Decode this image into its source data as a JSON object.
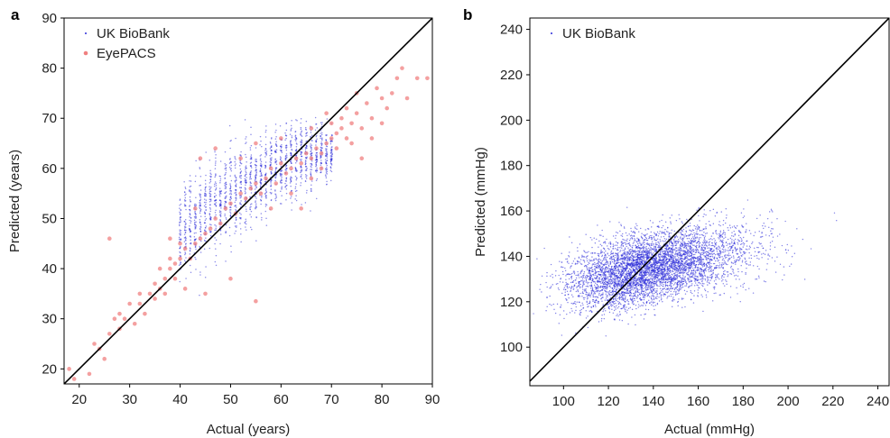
{
  "chart_data": [
    {
      "panel": "a",
      "type": "scatter",
      "xlabel": "Actual (years)",
      "ylabel": "Predicted (years)",
      "xlim": [
        17,
        90
      ],
      "ylim": [
        17,
        90
      ],
      "xticks": [
        20,
        30,
        40,
        50,
        60,
        70,
        80,
        90
      ],
      "yticks": [
        20,
        30,
        40,
        50,
        60,
        70,
        80,
        90
      ],
      "grid": false,
      "legend_position": "top-left",
      "identity_line": true,
      "series": [
        {
          "name": "UK BioBank",
          "color": "#2b2bd9",
          "clusters": [
            {
              "x": 40,
              "y_range": [
                38,
                57
              ]
            },
            {
              "x": 41,
              "y_range": [
                38,
                58
              ]
            },
            {
              "x": 42,
              "y_range": [
                39,
                59
              ]
            },
            {
              "x": 43,
              "y_range": [
                40,
                59
              ]
            },
            {
              "x": 44,
              "y_range": [
                40,
                60
              ]
            },
            {
              "x": 45,
              "y_range": [
                41,
                61
              ]
            },
            {
              "x": 46,
              "y_range": [
                42,
                62
              ]
            },
            {
              "x": 47,
              "y_range": [
                42,
                63
              ]
            },
            {
              "x": 48,
              "y_range": [
                43,
                63
              ]
            },
            {
              "x": 49,
              "y_range": [
                44,
                64
              ]
            },
            {
              "x": 50,
              "y_range": [
                45,
                65
              ]
            },
            {
              "x": 51,
              "y_range": [
                45,
                65
              ]
            },
            {
              "x": 52,
              "y_range": [
                46,
                66
              ]
            },
            {
              "x": 53,
              "y_range": [
                47,
                66
              ]
            },
            {
              "x": 54,
              "y_range": [
                47,
                67
              ]
            },
            {
              "x": 55,
              "y_range": [
                48,
                67
              ]
            },
            {
              "x": 56,
              "y_range": [
                49,
                68
              ]
            },
            {
              "x": 57,
              "y_range": [
                50,
                68
              ]
            },
            {
              "x": 58,
              "y_range": [
                50,
                68
              ]
            },
            {
              "x": 59,
              "y_range": [
                51,
                69
              ]
            },
            {
              "x": 60,
              "y_range": [
                52,
                69
              ]
            },
            {
              "x": 61,
              "y_range": [
                52,
                69
              ]
            },
            {
              "x": 62,
              "y_range": [
                53,
                70
              ]
            },
            {
              "x": 63,
              "y_range": [
                54,
                70
              ]
            },
            {
              "x": 64,
              "y_range": [
                54,
                70
              ]
            },
            {
              "x": 65,
              "y_range": [
                55,
                70
              ]
            },
            {
              "x": 66,
              "y_range": [
                55,
                70
              ]
            },
            {
              "x": 67,
              "y_range": [
                56,
                70
              ]
            },
            {
              "x": 68,
              "y_range": [
                56,
                70
              ]
            },
            {
              "x": 69,
              "y_range": [
                57,
                69
              ]
            },
            {
              "x": 70,
              "y_range": [
                58,
                68
              ]
            }
          ]
        },
        {
          "name": "EyePACS",
          "color": "#f08080",
          "points": [
            [
              18,
              20
            ],
            [
              19,
              18
            ],
            [
              22,
              19
            ],
            [
              23,
              25
            ],
            [
              24,
              24
            ],
            [
              25,
              22
            ],
            [
              26,
              27
            ],
            [
              26,
              46
            ],
            [
              27,
              30
            ],
            [
              28,
              28
            ],
            [
              28,
              31
            ],
            [
              29,
              30
            ],
            [
              30,
              33
            ],
            [
              31,
              29
            ],
            [
              32,
              33
            ],
            [
              32,
              35
            ],
            [
              33,
              31
            ],
            [
              34,
              35
            ],
            [
              35,
              34
            ],
            [
              35,
              37
            ],
            [
              36,
              36
            ],
            [
              36,
              40
            ],
            [
              37,
              38
            ],
            [
              37,
              35
            ],
            [
              38,
              40
            ],
            [
              38,
              42
            ],
            [
              39,
              41
            ],
            [
              39,
              38
            ],
            [
              40,
              42
            ],
            [
              40,
              45
            ],
            [
              41,
              44
            ],
            [
              42,
              42
            ],
            [
              43,
              45
            ],
            [
              44,
              46
            ],
            [
              45,
              47
            ],
            [
              46,
              48
            ],
            [
              47,
              50
            ],
            [
              48,
              49
            ],
            [
              49,
              52
            ],
            [
              50,
              53
            ],
            [
              51,
              51
            ],
            [
              52,
              55
            ],
            [
              53,
              54
            ],
            [
              54,
              56
            ],
            [
              55,
              33.5
            ],
            [
              55,
              57
            ],
            [
              56,
              55
            ],
            [
              57,
              58
            ],
            [
              58,
              60
            ],
            [
              59,
              57
            ],
            [
              60,
              61
            ],
            [
              61,
              59
            ],
            [
              62,
              60
            ],
            [
              63,
              62
            ],
            [
              64,
              61
            ],
            [
              65,
              63
            ],
            [
              66,
              62
            ],
            [
              67,
              64
            ],
            [
              68,
              63
            ],
            [
              69,
              65
            ],
            [
              70,
              66
            ],
            [
              70,
              69
            ],
            [
              71,
              67
            ],
            [
              71,
              64
            ],
            [
              72,
              68
            ],
            [
              72,
              70
            ],
            [
              73,
              66
            ],
            [
              73,
              72
            ],
            [
              74,
              69
            ],
            [
              74,
              65
            ],
            [
              75,
              71
            ],
            [
              75,
              75
            ],
            [
              76,
              68
            ],
            [
              76,
              62
            ],
            [
              77,
              73
            ],
            [
              78,
              70
            ],
            [
              78,
              66
            ],
            [
              79,
              76
            ],
            [
              80,
              74
            ],
            [
              80,
              69
            ],
            [
              81,
              72
            ],
            [
              82,
              75
            ],
            [
              83,
              78
            ],
            [
              84,
              80
            ],
            [
              85,
              74
            ],
            [
              87,
              78
            ],
            [
              89,
              78
            ],
            [
              44,
              62
            ],
            [
              47,
              64
            ],
            [
              50,
              38
            ],
            [
              45,
              35
            ],
            [
              52,
              62
            ],
            [
              55,
              65
            ],
            [
              58,
              52
            ],
            [
              60,
              66
            ],
            [
              62,
              55
            ],
            [
              43,
              52
            ],
            [
              38,
              46
            ],
            [
              66,
              58
            ],
            [
              68,
              60
            ],
            [
              64,
              52
            ],
            [
              66,
              68
            ],
            [
              69,
              71
            ],
            [
              41,
              36
            ]
          ]
        }
      ]
    },
    {
      "panel": "b",
      "type": "scatter",
      "xlabel": "Actual (mmHg)",
      "ylabel": "Predicted (mmHg)",
      "xlim": [
        85,
        245
      ],
      "ylim": [
        83,
        245
      ],
      "xticks": [
        100,
        120,
        140,
        160,
        180,
        200,
        220,
        240
      ],
      "yticks": [
        100,
        120,
        140,
        160,
        180,
        200,
        220,
        240
      ],
      "grid": false,
      "legend_position": "top-left",
      "identity_line": true,
      "series": [
        {
          "name": "UK BioBank",
          "color": "#2b2bd9",
          "distribution": {
            "x_mean": 138,
            "x_sd": 19,
            "y_mean": 135,
            "y_sd": 8.5,
            "correlation": 0.45,
            "x_range": [
              86,
              235
            ],
            "y_range": [
              103,
              165
            ]
          }
        }
      ]
    }
  ]
}
